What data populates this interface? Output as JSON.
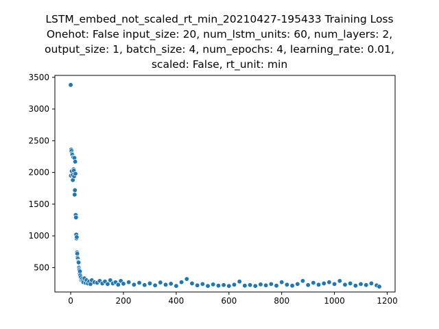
{
  "chart_data": {
    "type": "scatter",
    "title_lines": [
      "LSTM_embed_not_scaled_rt_min_20210427-195433 Training Loss",
      "Onehot: False input_size: 20, num_lstm_units: 60, num_layers: 2,",
      "output_size: 1, batch_size: 4, num_epochs: 4, learning_rate: 0.01,",
      "scaled: False, rt_unit: min"
    ],
    "xlabel": "",
    "ylabel": "",
    "xlim": [
      -60,
      1230
    ],
    "ylim": [
      115,
      3530
    ],
    "x_ticks": [
      0,
      200,
      400,
      600,
      800,
      1000,
      1200
    ],
    "y_ticks": [
      500,
      1000,
      1500,
      2000,
      2500,
      3000,
      3500
    ],
    "grid": false,
    "legend": "none",
    "marker_color": "#1f77b4",
    "points": [
      [
        0,
        3380
      ],
      [
        1,
        1950
      ],
      [
        2,
        2360
      ],
      [
        3,
        2340
      ],
      [
        4,
        2020
      ],
      [
        5,
        2300
      ],
      [
        6,
        2280
      ],
      [
        7,
        1960
      ],
      [
        8,
        1880
      ],
      [
        9,
        2240
      ],
      [
        10,
        2240
      ],
      [
        11,
        2050
      ],
      [
        12,
        2030
      ],
      [
        13,
        1940
      ],
      [
        14,
        2230
      ],
      [
        15,
        1650
      ],
      [
        16,
        1720
      ],
      [
        17,
        2170
      ],
      [
        18,
        1980
      ],
      [
        19,
        1330
      ],
      [
        20,
        1290
      ],
      [
        21,
        1020
      ],
      [
        22,
        960
      ],
      [
        23,
        980
      ],
      [
        24,
        740
      ],
      [
        25,
        720
      ],
      [
        26,
        660
      ],
      [
        27,
        640
      ],
      [
        28,
        600
      ],
      [
        29,
        590
      ],
      [
        30,
        580
      ],
      [
        31,
        500
      ],
      [
        32,
        480
      ],
      [
        33,
        460
      ],
      [
        34,
        410
      ],
      [
        35,
        440
      ],
      [
        36,
        380
      ],
      [
        38,
        350
      ],
      [
        40,
        300
      ],
      [
        42,
        320
      ],
      [
        45,
        290
      ],
      [
        48,
        270
      ],
      [
        52,
        330
      ],
      [
        56,
        260
      ],
      [
        60,
        300
      ],
      [
        65,
        250
      ],
      [
        70,
        280
      ],
      [
        75,
        240
      ],
      [
        80,
        300
      ],
      [
        90,
        270
      ],
      [
        100,
        260
      ],
      [
        110,
        290
      ],
      [
        120,
        250
      ],
      [
        130,
        280
      ],
      [
        140,
        240
      ],
      [
        150,
        300
      ],
      [
        160,
        250
      ],
      [
        170,
        270
      ],
      [
        180,
        230
      ],
      [
        190,
        290
      ],
      [
        200,
        245
      ],
      [
        220,
        270
      ],
      [
        240,
        230
      ],
      [
        260,
        260
      ],
      [
        280,
        225
      ],
      [
        300,
        250
      ],
      [
        320,
        220
      ],
      [
        340,
        265
      ],
      [
        360,
        230
      ],
      [
        380,
        245
      ],
      [
        400,
        210
      ],
      [
        420,
        270
      ],
      [
        440,
        320
      ],
      [
        460,
        250
      ],
      [
        480,
        220
      ],
      [
        500,
        240
      ],
      [
        520,
        210
      ],
      [
        540,
        235
      ],
      [
        560,
        215
      ],
      [
        580,
        225
      ],
      [
        600,
        210
      ],
      [
        620,
        230
      ],
      [
        640,
        280
      ],
      [
        660,
        215
      ],
      [
        680,
        225
      ],
      [
        700,
        210
      ],
      [
        720,
        235
      ],
      [
        740,
        220
      ],
      [
        760,
        240
      ],
      [
        780,
        215
      ],
      [
        800,
        270
      ],
      [
        820,
        230
      ],
      [
        840,
        215
      ],
      [
        860,
        240
      ],
      [
        880,
        290
      ],
      [
        900,
        225
      ],
      [
        920,
        260
      ],
      [
        940,
        230
      ],
      [
        960,
        250
      ],
      [
        980,
        270
      ],
      [
        1000,
        240
      ],
      [
        1020,
        290
      ],
      [
        1040,
        230
      ],
      [
        1060,
        250
      ],
      [
        1080,
        215
      ],
      [
        1100,
        240
      ],
      [
        1120,
        225
      ],
      [
        1140,
        250
      ],
      [
        1160,
        220
      ],
      [
        1170,
        200
      ]
    ]
  }
}
